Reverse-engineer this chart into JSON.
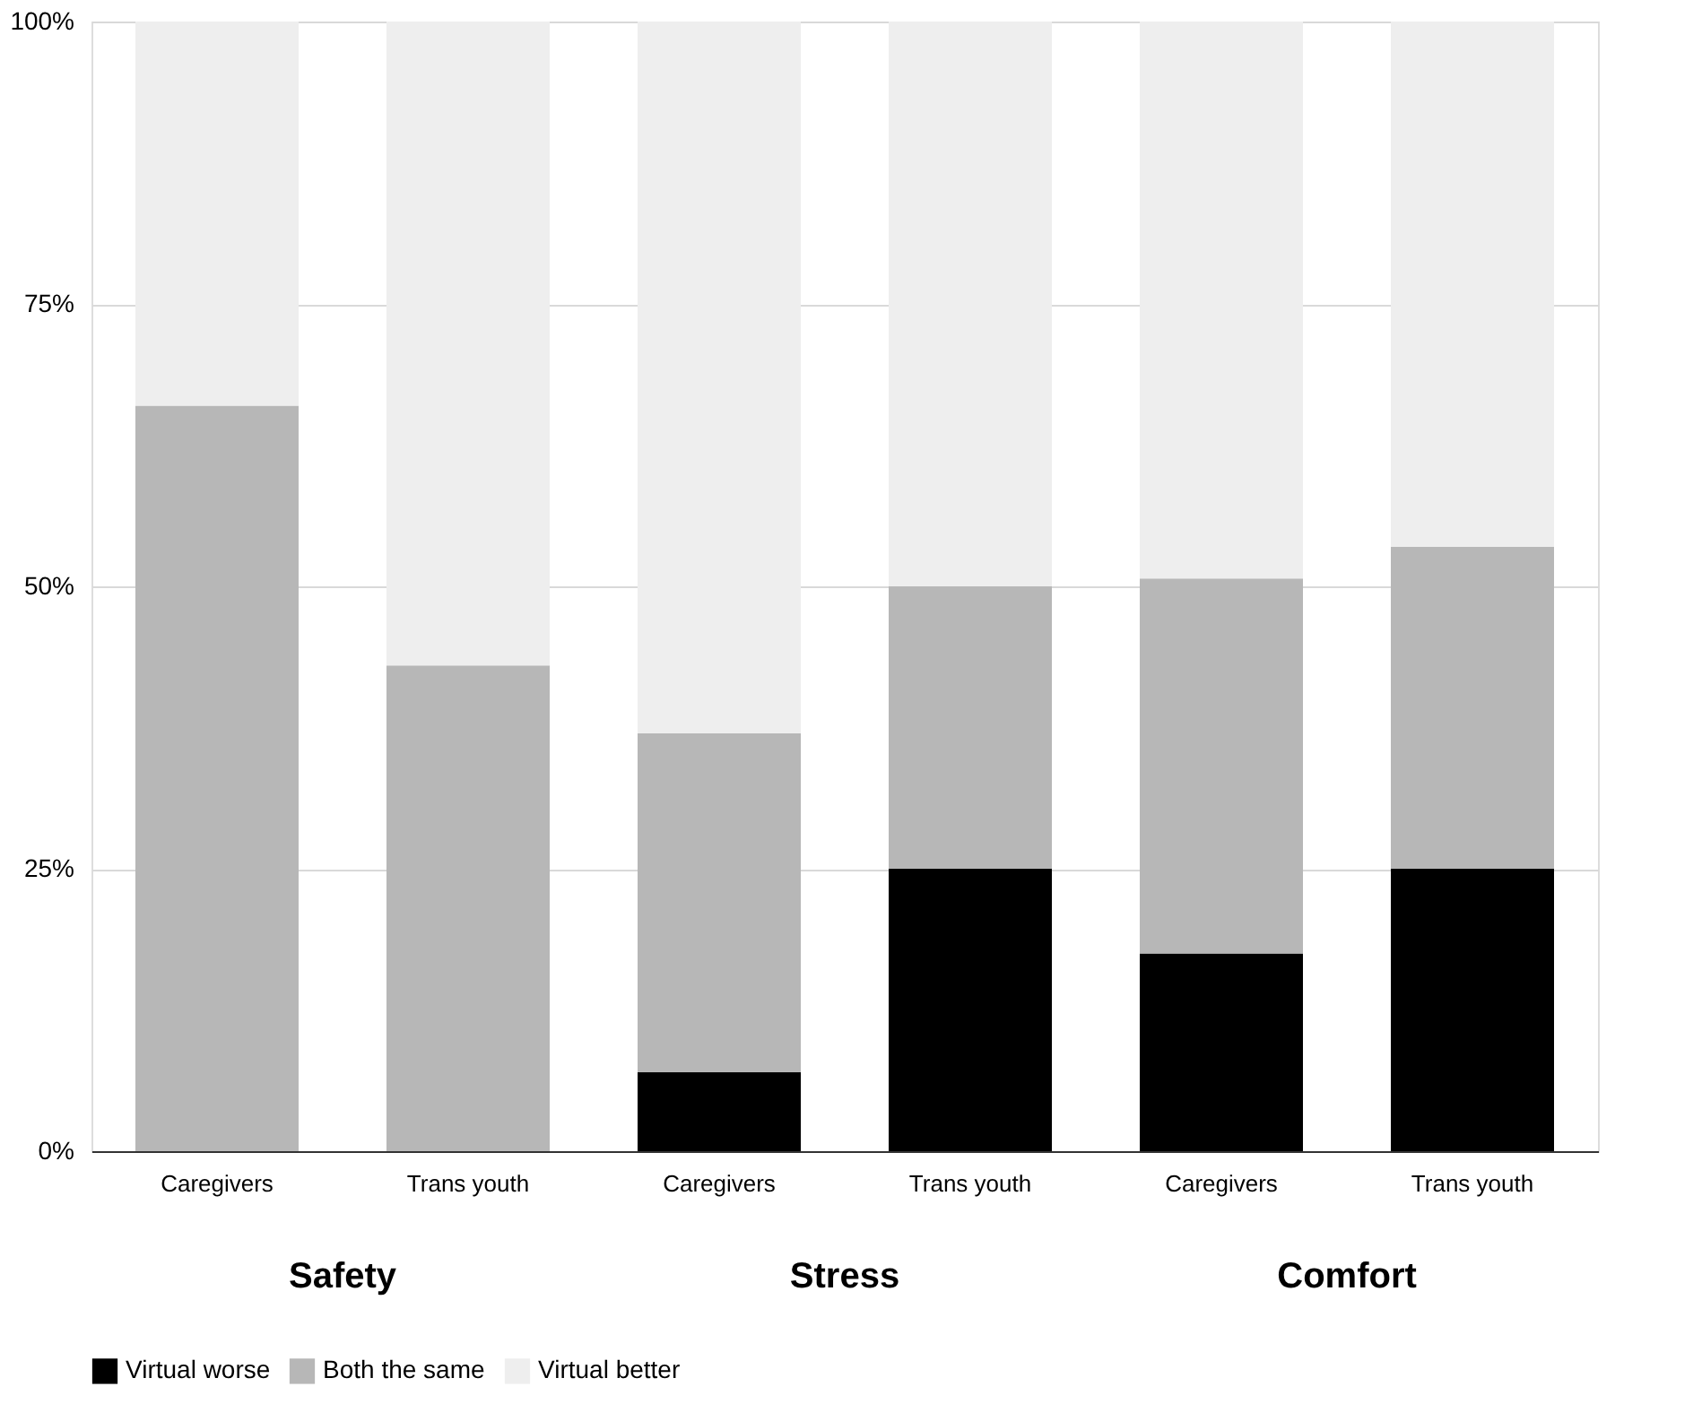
{
  "chart_data": {
    "type": "bar",
    "stacked": true,
    "categories": [
      "Caregivers",
      "Trans youth",
      "Caregivers",
      "Trans youth",
      "Caregivers",
      "Trans youth"
    ],
    "series": [
      {
        "name": "Virtual worse",
        "color": "#000000",
        "values": [
          0,
          0,
          7,
          25,
          17.5,
          25
        ]
      },
      {
        "name": "Both the same",
        "color": "#b7b7b7",
        "values": [
          66,
          43,
          30,
          25,
          33.2,
          28.5
        ]
      },
      {
        "name": "Virtual better",
        "color": "#eeeeee",
        "values": [
          34,
          57,
          63,
          50,
          49.3,
          46.5
        ]
      }
    ],
    "ylim": [
      0,
      100
    ],
    "yticks": [
      {
        "value": 0,
        "label": "0%"
      },
      {
        "value": 25,
        "label": "25%"
      },
      {
        "value": 50,
        "label": "50%"
      },
      {
        "value": 75,
        "label": "75%"
      },
      {
        "value": 100,
        "label": "100%"
      }
    ],
    "grid": "y",
    "legend": "bottom",
    "annotations": [
      "Safety",
      "Stress",
      "Comfort"
    ]
  }
}
